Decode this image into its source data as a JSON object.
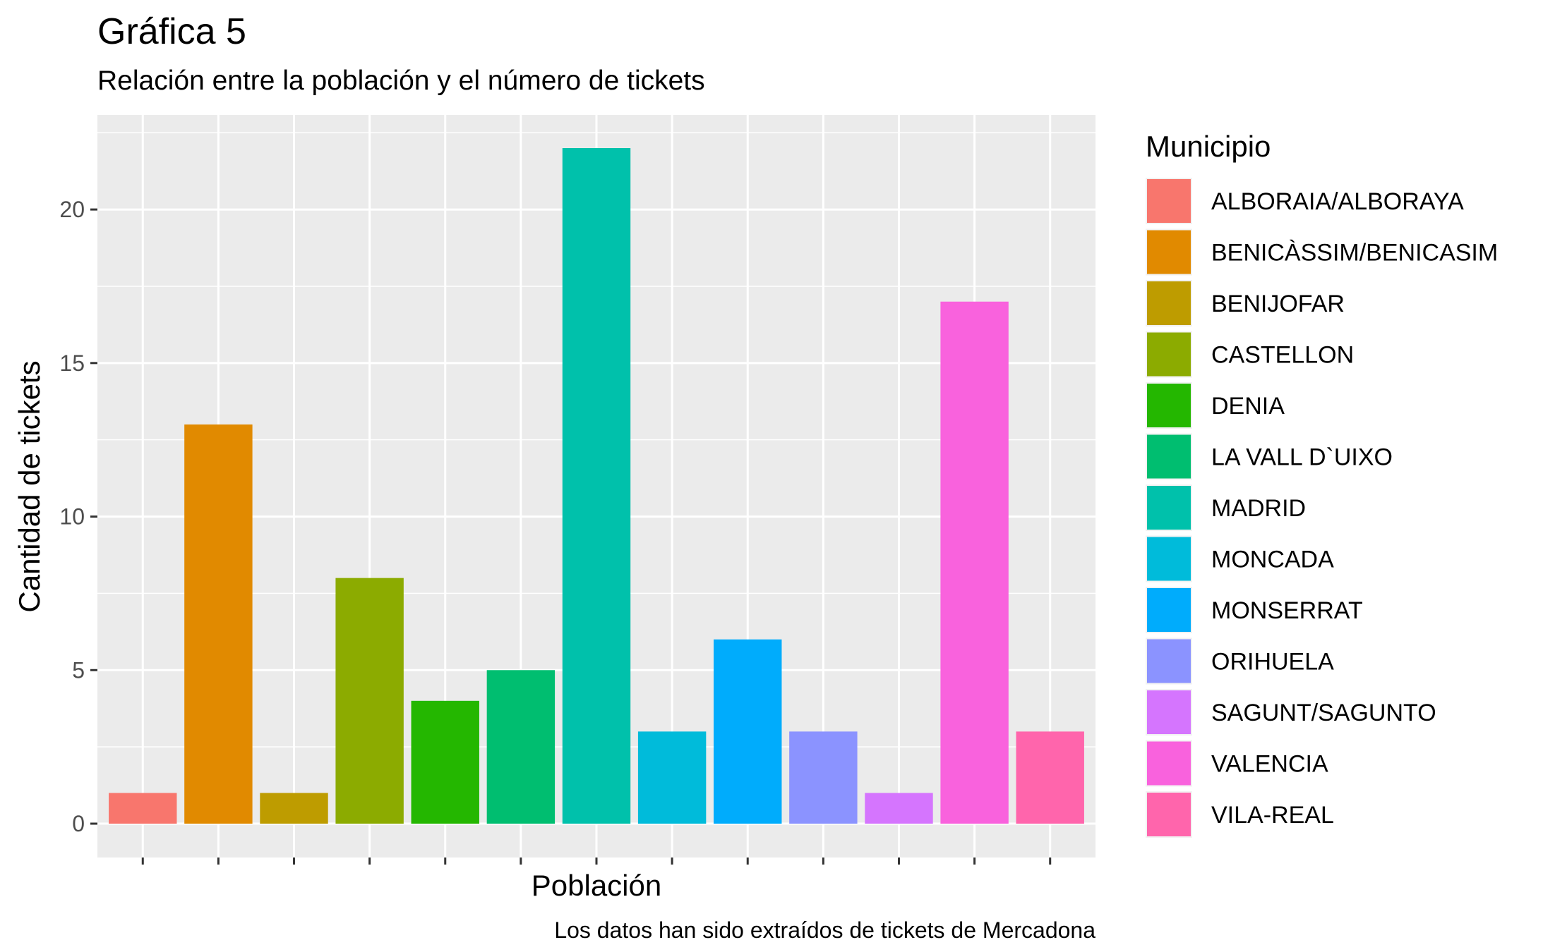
{
  "chart_data": {
    "type": "bar",
    "title": "Gráfica 5",
    "subtitle": "Relación entre la población y el número de tickets",
    "xlabel": "Población",
    "ylabel": "Cantidad de tickets",
    "caption": "Los datos han sido extraídos de tickets de Mercadona",
    "categories": [
      "ALBORAIA/ALBORAYA",
      "BENICÀSSIM/BENICASIM",
      "BENIJOFAR",
      "CASTELLON",
      "DENIA",
      "LA VALL D`UIXO",
      "MADRID",
      "MONCADA",
      "MONSERRAT",
      "ORIHUELA",
      "SAGUNT/SAGUNTO",
      "VALENCIA",
      "VILA-REAL"
    ],
    "values": [
      1,
      13,
      1,
      8,
      4,
      5,
      22,
      3,
      6,
      3,
      1,
      17,
      3
    ],
    "colors": [
      "#F8766D",
      "#E18A00",
      "#BE9C00",
      "#8CAB00",
      "#24B700",
      "#00BE70",
      "#00C1AB",
      "#00BBDA",
      "#00ACFC",
      "#8B93FF",
      "#D575FE",
      "#F962DD",
      "#FF65AC"
    ],
    "ylim": [
      0,
      23.1
    ],
    "yticks": [
      0,
      5,
      10,
      15,
      20
    ],
    "y_minor_ticks": [
      2.5,
      7.5,
      12.5,
      17.5,
      22.5
    ],
    "x_tick_labels_shown": false,
    "grid": true,
    "panel_background": "#EBEBEB",
    "grid_color": "#FFFFFF",
    "legend": {
      "title": "Municipio",
      "position": "right"
    }
  }
}
